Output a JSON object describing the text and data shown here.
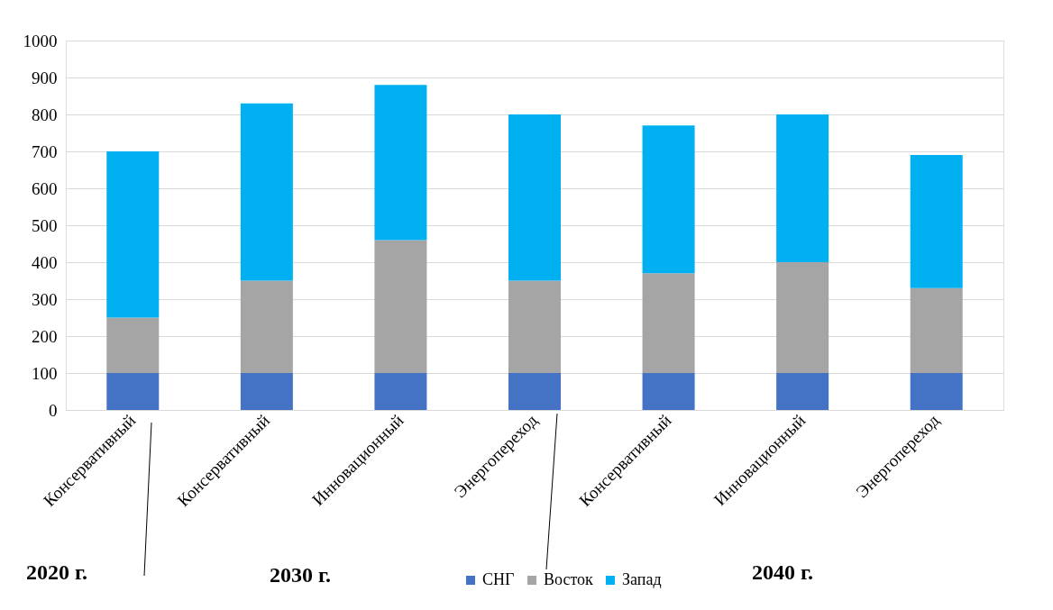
{
  "chart_data": {
    "type": "bar",
    "stacked": true,
    "categories": [
      "Консервативный",
      "Консервативный",
      "Инновационный",
      "Энергопереход",
      "Консервативный",
      "Инновационный",
      "Энергопереход"
    ],
    "series": [
      {
        "name": "СНГ",
        "color": "#4472c4",
        "values": [
          100,
          100,
          100,
          100,
          100,
          100,
          100
        ]
      },
      {
        "name": "Восток",
        "color": "#a5a5a5",
        "values": [
          150,
          250,
          360,
          250,
          270,
          300,
          230
        ]
      },
      {
        "name": "Запад",
        "color": "#00b0f0",
        "values": [
          450,
          480,
          420,
          450,
          400,
          400,
          360
        ]
      }
    ],
    "ylim": [
      0,
      1000
    ],
    "yticks": [
      0,
      100,
      200,
      300,
      400,
      500,
      600,
      700,
      800,
      900,
      1000
    ],
    "grid": "y",
    "legend": "bottom",
    "annotations": [
      "2020 г.",
      "2030 г.",
      "2040 г."
    ]
  }
}
